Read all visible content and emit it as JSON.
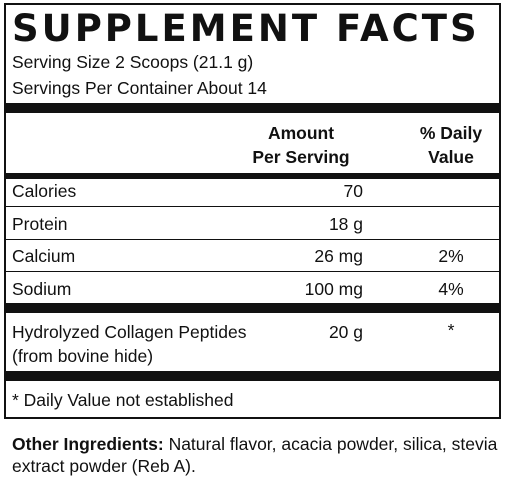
{
  "label": {
    "title": "SUPPLEMENT FACTS",
    "serving_size": "Serving Size 2 Scoops (21.1 g)",
    "servings_per_container": "Servings Per Container About 14"
  },
  "table": {
    "header": {
      "amount_line1": "Amount",
      "amount_line2": "Per Serving",
      "dv_line1": "% Daily",
      "dv_line2": "Value"
    },
    "rows": [
      {
        "name": "Calories",
        "amount": "70",
        "dv": ""
      },
      {
        "name": "Protein",
        "amount": "18 g",
        "dv": ""
      },
      {
        "name": "Calcium",
        "amount": "26 mg",
        "dv": "2%"
      },
      {
        "name": "Sodium",
        "amount": "100 mg",
        "dv": "4%"
      },
      {
        "name_line1": "Hydrolyzed Collagen Peptides",
        "name_line2": "(from bovine hide)",
        "amount": "20 g",
        "dv": "*"
      }
    ],
    "footnote": "* Daily Value not established"
  },
  "other_ingredients": {
    "label": "Other Ingredients:",
    "text": "Natural flavor, acacia powder, silica, stevia extract powder (Reb A)."
  }
}
